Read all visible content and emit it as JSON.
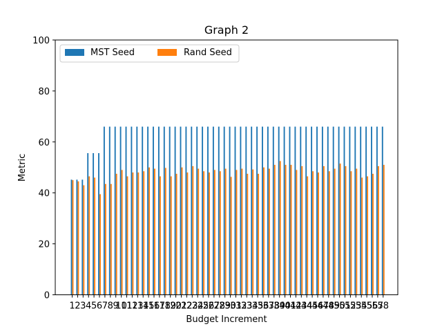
{
  "chart_data": {
    "type": "bar",
    "title": "Graph 2",
    "xlabel": "Budget Increment",
    "ylabel": "Metric",
    "ylim": [
      0,
      100
    ],
    "yticks": [
      0,
      20,
      40,
      60,
      80,
      100
    ],
    "grid": false,
    "legend_position": "top-left",
    "categories": [
      "1",
      "2",
      "3",
      "4",
      "5",
      "6",
      "7",
      "8",
      "9",
      "10",
      "11",
      "12",
      "13",
      "14",
      "15",
      "16",
      "17",
      "18",
      "19",
      "20",
      "21",
      "22",
      "23",
      "24",
      "25",
      "26",
      "27",
      "28",
      "29",
      "30",
      "31",
      "32",
      "33",
      "34",
      "35",
      "36",
      "37",
      "38",
      "39",
      "40",
      "41",
      "42",
      "43",
      "44",
      "45",
      "46",
      "47",
      "48",
      "49",
      "50",
      "51",
      "52",
      "53",
      "54",
      "55",
      "56",
      "57",
      "58"
    ],
    "series": [
      {
        "name": "MST Seed",
        "color": "#1f77b4",
        "values": [
          45.2,
          45.2,
          45.2,
          55.6,
          55.6,
          55.6,
          66,
          66,
          66,
          66,
          66,
          66,
          66,
          66,
          66,
          66,
          66,
          66,
          66,
          66,
          66,
          66,
          66,
          66,
          66,
          66,
          66,
          66,
          66,
          66,
          66,
          66,
          66,
          66,
          66,
          66,
          66,
          66,
          66,
          66,
          66,
          66,
          66,
          66,
          66,
          66,
          66,
          66,
          66,
          66,
          66,
          66,
          66,
          66,
          66,
          66,
          66,
          66
        ]
      },
      {
        "name": "Rand Seed",
        "color": "#ff7f0e",
        "values": [
          45,
          44.5,
          43,
          46.5,
          46,
          39.5,
          43.5,
          43.5,
          47.5,
          49,
          46.5,
          48,
          48,
          48.5,
          50,
          49.5,
          46.5,
          49.8,
          46.5,
          47.5,
          50,
          48,
          50.5,
          49.5,
          48.5,
          48,
          49,
          48.5,
          49.5,
          46.3,
          49,
          49.5,
          47.5,
          49.2,
          47.5,
          50,
          49.5,
          51,
          52.5,
          51,
          51,
          49,
          50.5,
          46.5,
          48.5,
          48,
          50.5,
          48.5,
          49.5,
          51.5,
          50.5,
          48.5,
          49.5,
          46,
          46.5,
          47.5,
          50.5,
          51
        ]
      }
    ]
  }
}
